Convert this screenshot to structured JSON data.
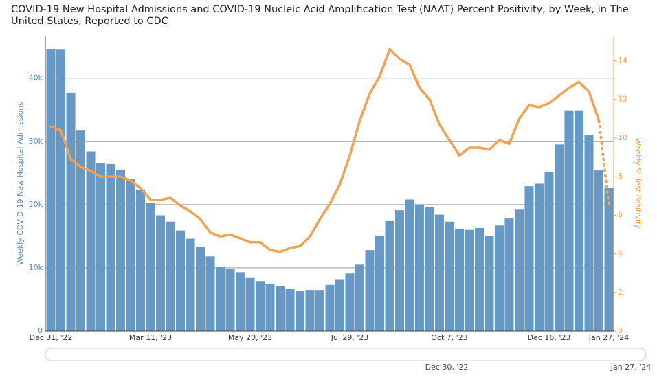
{
  "chart_data": {
    "type": "bar-line",
    "title": "COVID-19 New Hospital Admissions and COVID-19 Nucleic Acid Amplification Test (NAAT) Percent Positivity, by Week, in The United States, Reported to CDC",
    "categories": [
      "Dec 31, '22",
      null,
      null,
      null,
      null,
      null,
      null,
      null,
      null,
      null,
      "Mar 11, '23",
      null,
      null,
      null,
      null,
      null,
      null,
      null,
      null,
      null,
      "May 20, '23",
      null,
      null,
      null,
      null,
      null,
      null,
      null,
      null,
      null,
      "Jul 29, '23",
      null,
      null,
      null,
      null,
      null,
      null,
      null,
      null,
      null,
      "Oct 7, '23",
      null,
      null,
      null,
      null,
      null,
      null,
      null,
      null,
      null,
      "Dec 16, '23",
      null,
      null,
      null,
      null,
      null,
      "Jan 27, '24"
    ],
    "series": [
      {
        "name": "Weekly COVID-19 New Hospital Admissions",
        "color": "#6699c6",
        "axis": "y",
        "values": [
          44600,
          44500,
          37700,
          31800,
          28400,
          26500,
          26400,
          25500,
          24000,
          22400,
          20300,
          18300,
          17300,
          15900,
          14600,
          13300,
          11800,
          10200,
          9800,
          9300,
          8500,
          7900,
          7500,
          7100,
          6700,
          6300,
          6500,
          6500,
          7300,
          8200,
          9100,
          10500,
          12800,
          15100,
          17500,
          19100,
          20800,
          20000,
          19600,
          18400,
          17300,
          16200,
          16000,
          16300,
          15100,
          16700,
          17800,
          19300,
          22900,
          23300,
          25200,
          29500,
          34900,
          34900,
          31000,
          25400,
          22700
        ]
      },
      {
        "name": "Weekly % Test Positivity",
        "color": "#f4a04f",
        "axis": "y2",
        "dotted_from": 55,
        "values": [
          10.6,
          10.4,
          8.9,
          8.5,
          8.3,
          8.0,
          8.0,
          8.0,
          7.8,
          7.4,
          6.8,
          6.8,
          6.9,
          6.5,
          6.2,
          5.8,
          5.1,
          4.9,
          5.0,
          4.8,
          4.6,
          4.6,
          4.2,
          4.1,
          4.3,
          4.4,
          4.9,
          5.8,
          6.6,
          7.6,
          9.1,
          10.9,
          12.3,
          13.2,
          14.6,
          14.1,
          13.8,
          12.6,
          12.0,
          10.7,
          9.9,
          9.1,
          9.5,
          9.5,
          9.4,
          9.9,
          9.7,
          11.0,
          11.7,
          11.6,
          11.8,
          12.2,
          12.6,
          12.9,
          12.4,
          10.9,
          6.5
        ]
      }
    ],
    "ylabel": "Weekly COVID-19 New Hospital Admissions",
    "y2label": "Weekly % Test Positivity",
    "ylim": [
      0,
      46700
    ],
    "yticks": [
      0,
      {
        "value": 10000,
        "label": "10k"
      },
      {
        "value": 20000,
        "label": "20k"
      },
      {
        "value": 30000,
        "label": "30k"
      },
      {
        "value": 40000,
        "label": "40k"
      }
    ],
    "y2lim": [
      0,
      15.3
    ],
    "y2ticks": [
      0,
      2,
      4,
      6,
      8,
      10,
      12,
      14
    ],
    "grid": true,
    "range_slider_labels": [
      "Dec 30, '22",
      "Jan 27, '24"
    ]
  }
}
